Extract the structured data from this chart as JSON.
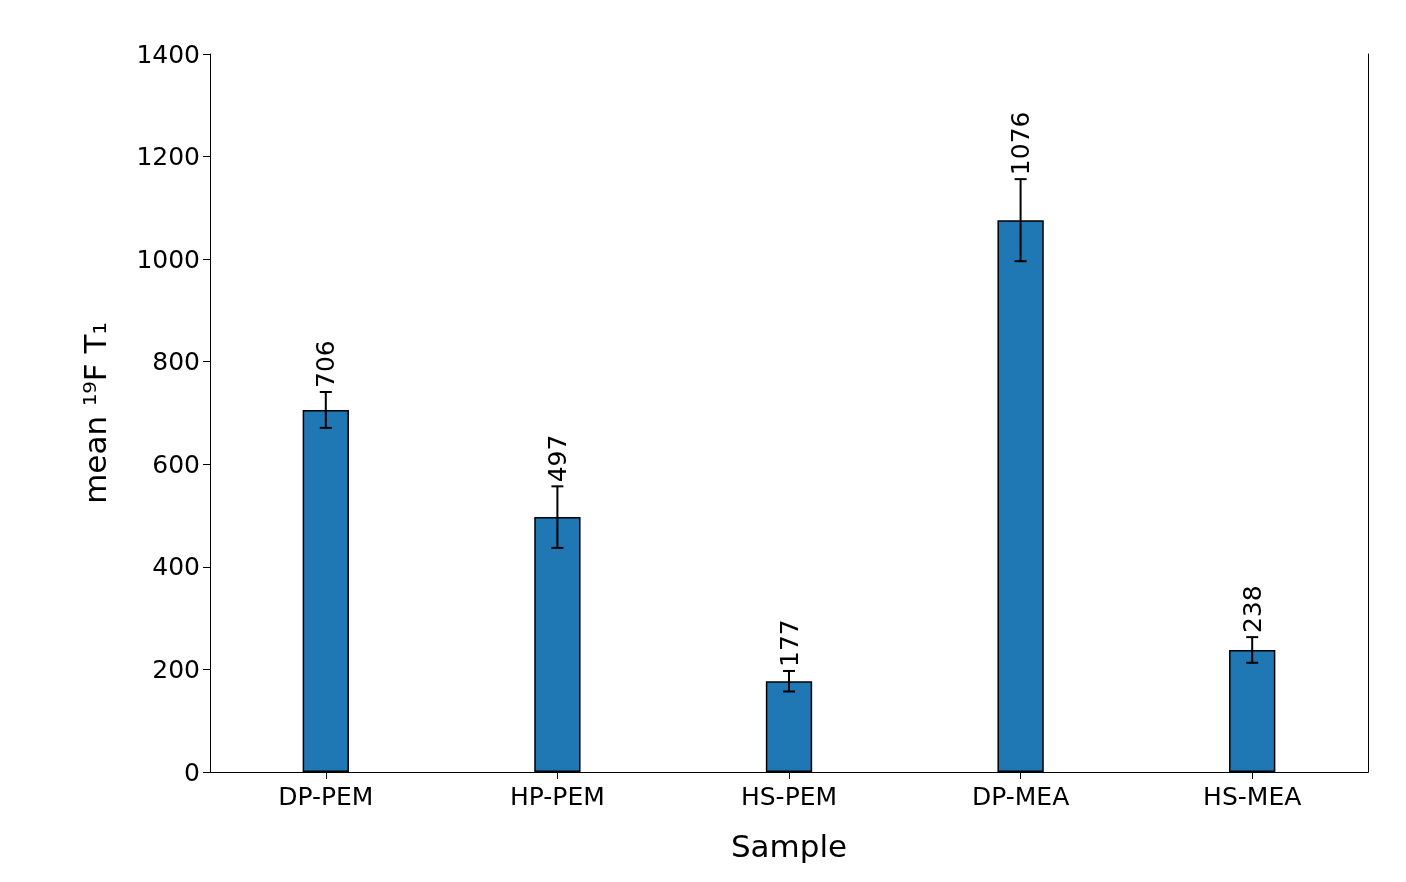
{
  "chart_data": {
    "type": "bar",
    "xlabel": "Sample",
    "ylabel": "mean ¹⁹F T₁",
    "categories": [
      "DP-PEM",
      "HP-PEM",
      "HS-PEM",
      "DP-MEA",
      "HS-MEA"
    ],
    "values": [
      706,
      497,
      177,
      1076,
      238
    ],
    "errors": [
      35,
      60,
      20,
      80,
      25
    ],
    "color": "#1f77b4",
    "ylim": [
      0,
      1400
    ],
    "yticks": [
      0,
      200,
      400,
      600,
      800,
      1000,
      1200,
      1400
    ],
    "data_labels": true,
    "grid": false
  }
}
